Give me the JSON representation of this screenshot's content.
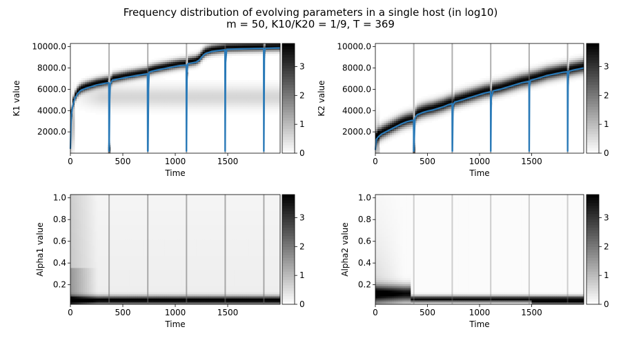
{
  "figure": {
    "title_line1": "Frequency distribution of evolving parameters in a single host (in log10)",
    "title_line2": "m = 50, K10/K20 = 1/9, T = 369"
  },
  "chart_data": [
    {
      "type": "heatmap",
      "id": "k1",
      "ylabel": "K1 value",
      "xlabel": "Time",
      "xlim": [
        0,
        2000
      ],
      "ylim": [
        0,
        10300
      ],
      "xticks": [
        0,
        500,
        1000,
        1500
      ],
      "xtick_labels": [
        "0",
        "500",
        "1000",
        "1500"
      ],
      "yticks": [
        2000,
        4000,
        6000,
        8000,
        10000
      ],
      "ytick_labels": [
        "2000.0",
        "4000.0",
        "6000.0",
        "8000.0",
        "10000.0"
      ],
      "colorbar": {
        "min": 0,
        "max": 3.8,
        "ticks": [
          0,
          1,
          2,
          3
        ],
        "tick_labels": [
          "0",
          "1",
          "2",
          "3"
        ]
      },
      "mean_line": {
        "x": [
          0,
          5,
          10,
          20,
          40,
          70,
          100,
          150,
          200,
          250,
          300,
          340,
          360,
          367,
          368,
          369,
          370,
          375,
          380,
          400,
          450,
          500,
          550,
          600,
          650,
          700,
          720,
          735,
          737,
          738,
          740,
          745,
          750,
          800,
          850,
          900,
          950,
          1000,
          1050,
          1080,
          1100,
          1105,
          1106,
          1107,
          1112,
          1120,
          1150,
          1200,
          1230,
          1260,
          1280,
          1300,
          1350,
          1400,
          1450,
          1470,
          1474,
          1475,
          1476,
          1480,
          1490,
          1550,
          1600,
          1650,
          1700,
          1750,
          1800,
          1835,
          1843,
          1844,
          1845,
          1850,
          1860,
          1900,
          1950,
          2000
        ],
        "y": [
          400,
          2500,
          3600,
          4300,
          5100,
          5600,
          5900,
          6100,
          6250,
          6400,
          6500,
          6580,
          6600,
          6600,
          200,
          200,
          200,
          5000,
          6500,
          6850,
          6950,
          7050,
          7150,
          7230,
          7320,
          7400,
          7430,
          7450,
          200,
          200,
          200,
          6000,
          7600,
          7750,
          7850,
          7950,
          8050,
          8150,
          8230,
          8250,
          8270,
          8270,
          200,
          200,
          7500,
          8400,
          8450,
          8550,
          8750,
          9100,
          9300,
          9400,
          9550,
          9620,
          9680,
          9700,
          9700,
          200,
          200,
          8500,
          9750,
          9770,
          9780,
          9800,
          9810,
          9820,
          9830,
          9840,
          9840,
          200,
          200,
          9500,
          9850,
          9860,
          9870,
          9880
        ]
      }
    },
    {
      "type": "heatmap",
      "id": "k2",
      "ylabel": "K2 value",
      "xlabel": "Time",
      "xlim": [
        0,
        2000
      ],
      "ylim": [
        0,
        10300
      ],
      "xticks": [
        0,
        500,
        1000,
        1500
      ],
      "xtick_labels": [
        "0",
        "500",
        "1000",
        "1500"
      ],
      "yticks": [
        2000,
        4000,
        6000,
        8000,
        10000
      ],
      "ytick_labels": [
        "2000.0",
        "4000.0",
        "6000.0",
        "8000.0",
        "10000.0"
      ],
      "colorbar": {
        "min": 0,
        "max": 3.8,
        "ticks": [
          0,
          1,
          2,
          3
        ],
        "tick_labels": [
          "0",
          "1",
          "2",
          "3"
        ]
      },
      "mean_line": {
        "x": [
          0,
          5,
          10,
          30,
          60,
          100,
          150,
          200,
          250,
          300,
          340,
          367,
          368,
          369,
          370,
          380,
          400,
          450,
          500,
          550,
          600,
          650,
          700,
          737,
          738,
          739,
          740,
          745,
          760,
          800,
          850,
          900,
          950,
          1000,
          1050,
          1100,
          1106,
          1107,
          1108,
          1112,
          1130,
          1200,
          1250,
          1300,
          1350,
          1400,
          1450,
          1475,
          1476,
          1477,
          1480,
          1490,
          1550,
          1600,
          1650,
          1700,
          1750,
          1800,
          1844,
          1845,
          1846,
          1850,
          1860,
          1900,
          1950,
          2000
        ],
        "y": [
          300,
          900,
          1300,
          1550,
          1800,
          2000,
          2250,
          2500,
          2750,
          2950,
          3050,
          3100,
          200,
          200,
          200,
          3300,
          3600,
          3800,
          3950,
          4050,
          4200,
          4350,
          4550,
          4650,
          200,
          200,
          200,
          4500,
          4800,
          4900,
          5050,
          5200,
          5350,
          5500,
          5650,
          5750,
          5800,
          200,
          200,
          5200,
          5850,
          6000,
          6150,
          6300,
          6450,
          6600,
          6700,
          6750,
          200,
          200,
          6300,
          6850,
          7000,
          7150,
          7300,
          7400,
          7500,
          7600,
          7650,
          200,
          200,
          7200,
          7700,
          7800,
          7900,
          8000
        ]
      }
    },
    {
      "type": "heatmap",
      "id": "alpha1",
      "ylabel": "Alpha1 value",
      "xlabel": "Time",
      "xlim": [
        0,
        2000
      ],
      "ylim": [
        0.02,
        1.03
      ],
      "xticks": [
        0,
        500,
        1000,
        1500
      ],
      "xtick_labels": [
        "0",
        "500",
        "1000",
        "1500"
      ],
      "yticks": [
        0.2,
        0.4,
        0.6,
        0.8,
        1.0
      ],
      "ytick_labels": [
        "0.2",
        "0.4",
        "0.6",
        "0.8",
        "1.0"
      ],
      "colorbar": {
        "min": 0,
        "max": 3.8,
        "ticks": [
          0,
          1,
          2,
          3
        ],
        "tick_labels": [
          "0",
          "1",
          "2",
          "3"
        ]
      }
    },
    {
      "type": "heatmap",
      "id": "alpha2",
      "ylabel": "Alpha2 value",
      "xlabel": "Time",
      "xlim": [
        0,
        2000
      ],
      "ylim": [
        0.02,
        1.03
      ],
      "xticks": [
        0,
        500,
        1000,
        1500
      ],
      "xtick_labels": [
        "0",
        "500",
        "1000",
        "1500"
      ],
      "yticks": [
        0.2,
        0.4,
        0.6,
        0.8,
        1.0
      ],
      "ytick_labels": [
        "0.2",
        "0.4",
        "0.6",
        "0.8",
        "1.0"
      ],
      "colorbar": {
        "min": 0,
        "max": 3.8,
        "ticks": [
          0,
          1,
          2,
          3
        ],
        "tick_labels": [
          "0",
          "1",
          "2",
          "3"
        ]
      }
    }
  ],
  "colors": {
    "mean_line": "#2a7ab8",
    "cmap_low": "#ffffff",
    "cmap_high": "#000000"
  }
}
